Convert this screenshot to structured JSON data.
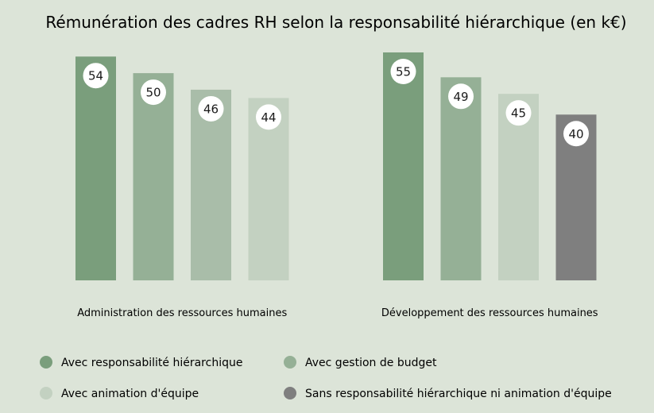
{
  "chart_data": {
    "type": "bar",
    "title": "Rémunération des cadres RH selon la responsabilité hiérarchique (en k€)",
    "xlabel": "",
    "ylabel": "",
    "ylim": [
      0,
      55
    ],
    "categories": [
      "Administration des ressources humaines",
      "Développement des ressources humaines"
    ],
    "series": [
      {
        "name": "Avec responsabilité hiérarchique",
        "color": "#7a9e7c",
        "values": [
          54,
          55
        ]
      },
      {
        "name": "Avec gestion de budget",
        "color": "#95b096",
        "values": [
          50,
          49
        ]
      },
      {
        "name": "Avec animation d'équipe",
        "color": "#c3d1c1",
        "group_colors": [
          "#a9bda9",
          "#c3d1c1"
        ],
        "values": [
          46,
          45
        ]
      },
      {
        "name": "Sans responsabilité hiérarchique ni animation d'équipe",
        "color": "#7f7f7f",
        "group_colors": [
          "#c3d1c1",
          "#7f7f7f"
        ],
        "values": [
          44,
          40
        ]
      }
    ],
    "grid": false,
    "legend_position": "bottom"
  }
}
